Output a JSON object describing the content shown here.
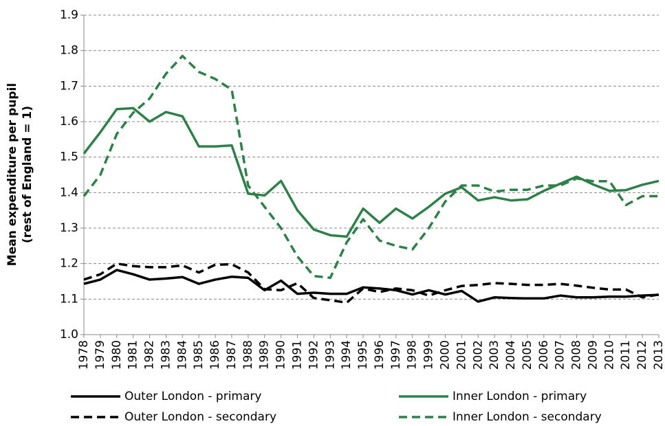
{
  "chart_data": {
    "type": "line",
    "ylabel": [
      "Mean expenditure per pupil",
      "(rest of England = 1)"
    ],
    "categories": [
      "1978",
      "1979",
      "1980",
      "1981",
      "1982",
      "1983",
      "1984",
      "1985",
      "1986",
      "1987",
      "1988",
      "1989",
      "1990",
      "1991",
      "1992",
      "1993",
      "1994",
      "1995",
      "1996",
      "1997",
      "1998",
      "1999",
      "2000",
      "2001",
      "2002",
      "2003",
      "2004",
      "2005",
      "2006",
      "2007",
      "2008",
      "2009",
      "2010",
      "2011",
      "2012",
      "2013"
    ],
    "series": [
      {
        "name": "Outer London - primary",
        "color": "#000000",
        "dashed": false,
        "values": [
          1.143,
          1.155,
          1.182,
          1.17,
          1.155,
          1.158,
          1.162,
          1.143,
          1.155,
          1.163,
          1.16,
          1.125,
          1.152,
          1.115,
          1.118,
          1.115,
          1.115,
          1.133,
          1.13,
          1.125,
          1.113,
          1.125,
          1.113,
          1.123,
          1.093,
          1.105,
          1.103,
          1.102,
          1.102,
          1.11,
          1.105,
          1.105,
          1.107,
          1.107,
          1.11,
          1.112
        ]
      },
      {
        "name": "Inner London - primary",
        "color": "#2e8049",
        "dashed": false,
        "values": [
          1.51,
          1.57,
          1.635,
          1.638,
          1.6,
          1.627,
          1.615,
          1.53,
          1.53,
          1.533,
          1.397,
          1.392,
          1.433,
          1.35,
          1.296,
          1.28,
          1.276,
          1.355,
          1.315,
          1.355,
          1.327,
          1.36,
          1.397,
          1.415,
          1.378,
          1.387,
          1.378,
          1.381,
          1.405,
          1.425,
          1.445,
          1.423,
          1.405,
          1.407,
          1.422,
          1.433
        ]
      },
      {
        "name": "Outer London - secondary",
        "color": "#000000",
        "dashed": true,
        "values": [
          1.155,
          1.17,
          1.2,
          1.193,
          1.19,
          1.19,
          1.195,
          1.175,
          1.197,
          1.198,
          1.175,
          1.128,
          1.125,
          1.145,
          1.103,
          1.097,
          1.09,
          1.13,
          1.12,
          1.13,
          1.125,
          1.11,
          1.125,
          1.137,
          1.14,
          1.145,
          1.143,
          1.14,
          1.14,
          1.143,
          1.138,
          1.132,
          1.127,
          1.127,
          1.105,
          1.113
        ]
      },
      {
        "name": "Inner London - secondary",
        "color": "#2e8049",
        "dashed": true,
        "values": [
          1.39,
          1.45,
          1.565,
          1.625,
          1.665,
          1.735,
          1.785,
          1.74,
          1.72,
          1.69,
          1.42,
          1.36,
          1.3,
          1.22,
          1.165,
          1.16,
          1.26,
          1.325,
          1.265,
          1.25,
          1.24,
          1.3,
          1.375,
          1.42,
          1.42,
          1.403,
          1.408,
          1.408,
          1.42,
          1.42,
          1.44,
          1.432,
          1.432,
          1.365,
          1.39,
          1.39
        ]
      }
    ],
    "ylim": [
      1,
      1.9
    ],
    "yticks": [
      {
        "value": 1,
        "label": "1.0"
      },
      1.1,
      1.2,
      1.3,
      1.4,
      1.5,
      1.6,
      1.7,
      1.8,
      1.9
    ],
    "grid": true
  }
}
